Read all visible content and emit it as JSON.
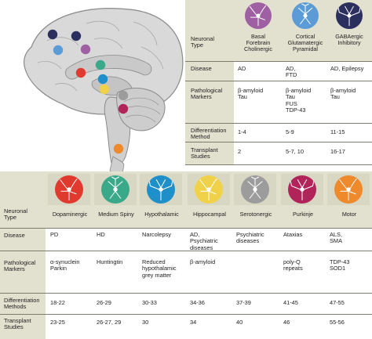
{
  "top_table": {
    "row_labels": {
      "type": "Neuronal\nType",
      "disease": "Disease",
      "markers": "Pathological\nMarkers",
      "diff": "Differentiation\nMethod",
      "transplant": "Transplant\nStudies"
    },
    "columns": [
      {
        "name": "Basal\nForebrain\nCholinergic",
        "disease": "AD",
        "markers": "β-amyloid\nTau",
        "diff": "1-4",
        "transplant": "2",
        "icon": "basal-forebrain-cholinergic-neuron-icon",
        "color": "#9f5fa3"
      },
      {
        "name": "Cortical\nGlutamatergic\nPyramidal",
        "disease": "AD,\nFTD",
        "markers": "β-amyloid\nTau\nFUS\nTDP-43",
        "diff": "5-9",
        "transplant": "5-7, 10",
        "icon": "cortical-pyramidal-neuron-icon",
        "color": "#5b9bd6"
      },
      {
        "name": "GABAergic\nInhibitory",
        "disease": "AD, Epilepsy",
        "markers": "β-amyloid\nTau",
        "diff": "11-15",
        "transplant": "16-17",
        "icon": "gabaergic-inhibitory-neuron-icon",
        "color": "#2b2f5e"
      }
    ]
  },
  "bottom_table": {
    "row_labels": {
      "type": "Neuronal\nType",
      "disease": "Disease",
      "markers": "Pathological\nMarkers",
      "diff": "Differentiation\nMethods",
      "transplant": "Transplant\nStudies"
    },
    "columns": [
      {
        "name": "Dopaminergic",
        "disease": "PD",
        "markers": "α-synuclein\nParkin",
        "diff": "18-22",
        "transplant": "23-25",
        "icon": "dopaminergic-neuron-icon",
        "color": "#e03a2f"
      },
      {
        "name": "Medium Spiny",
        "disease": "HD",
        "markers": "Huntingtin",
        "diff": "26-29",
        "transplant": "26-27, 29",
        "icon": "medium-spiny-neuron-icon",
        "color": "#3aa98a"
      },
      {
        "name": "Hypothalamic",
        "disease": "Narcolepsy",
        "markers": "Reduced\nhypothalamic\ngrey matter",
        "diff": "30-33",
        "transplant": "30",
        "icon": "hypothalamic-neuron-icon",
        "color": "#1e8fc8"
      },
      {
        "name": "Hippocampal",
        "disease": "AD,\nPsychiatric\ndiseases",
        "markers": "β-amyloid",
        "diff": "34-36",
        "transplant": "34",
        "icon": "hippocampal-neuron-icon",
        "color": "#f0d24a"
      },
      {
        "name": "Serotonergic",
        "disease": "Psychiatric\ndiseases",
        "markers": "",
        "diff": "37-39",
        "transplant": "40",
        "icon": "serotonergic-neuron-icon",
        "color": "#9c9c9c"
      },
      {
        "name": "Purkinje",
        "disease": "Ataxias",
        "markers": "poly-Q\nrepeats",
        "diff": "41-45",
        "transplant": "46",
        "icon": "purkinje-neuron-icon",
        "color": "#b0245a"
      },
      {
        "name": "Motor",
        "disease": "ALS,\nSMA",
        "markers": "TDP-43\nSOD1",
        "diff": "47-55",
        "transplant": "55-56",
        "icon": "motor-neuron-icon",
        "color": "#ee8a2c"
      }
    ]
  },
  "brain_dots": [
    {
      "name": "gabaergic",
      "color": "#2b2f5e"
    },
    {
      "name": "gabaergic-2",
      "color": "#2b2f5e"
    },
    {
      "name": "cortical",
      "color": "#5b9bd6"
    },
    {
      "name": "basal-forebrain",
      "color": "#9f5fa3"
    },
    {
      "name": "dopaminergic",
      "color": "#e03a2f"
    },
    {
      "name": "medium-spiny",
      "color": "#3aa98a"
    },
    {
      "name": "hypothalamic",
      "color": "#1e8fc8"
    },
    {
      "name": "hippocampal",
      "color": "#f0d24a"
    },
    {
      "name": "serotonergic",
      "color": "#9c9c9c"
    },
    {
      "name": "purkinje",
      "color": "#b0245a"
    },
    {
      "name": "motor",
      "color": "#ee8a2c"
    }
  ],
  "colors": {
    "band": "#e2e1cf",
    "rule": "#7d7b6e",
    "brain": "#d9d9d9",
    "brain_outline": "#8a8a8a"
  }
}
